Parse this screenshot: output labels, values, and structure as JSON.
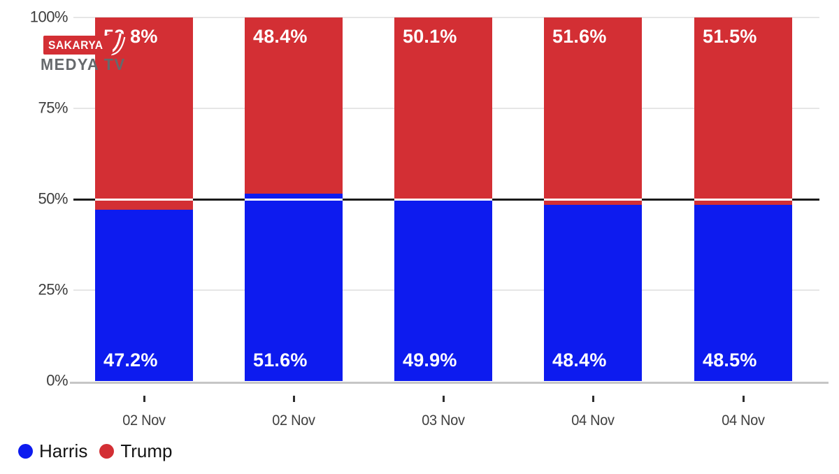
{
  "watermark": {
    "line1": "SAKARYA",
    "line2": "MEDYA TV"
  },
  "colors": {
    "harris_blue": "#0d1bef",
    "trump_red": "#d32f34",
    "grid": "#e6e6e6",
    "baseline": "#c6c6c6",
    "reference_line": "#1b1b1b",
    "axis_text": "#3d3d3d",
    "legend_text": "#141414",
    "logo_gray": "#66696c"
  },
  "chart_data": {
    "type": "bar",
    "stacked": true,
    "title": "",
    "xlabel": "",
    "ylabel": "",
    "ylim": [
      0,
      100
    ],
    "grid": true,
    "reference_line": 50,
    "legend_position": "bottom-left",
    "categories": [
      "02 Nov",
      "02 Nov",
      "03 Nov",
      "04 Nov",
      "04 Nov"
    ],
    "y_tick_values": [
      0,
      25,
      50,
      75,
      100
    ],
    "y_ticks": [
      "0%",
      "25%",
      "50%",
      "75%",
      "100%"
    ],
    "series": [
      {
        "name": "Harris",
        "color": "#0d1bef",
        "values": [
          47.2,
          51.6,
          49.9,
          48.4,
          48.5
        ],
        "labels": [
          "47.2%",
          "51.6%",
          "49.9%",
          "48.4%",
          "48.5%"
        ]
      },
      {
        "name": "Trump",
        "color": "#d32f34",
        "values": [
          52.8,
          48.4,
          50.1,
          51.6,
          51.5
        ],
        "labels": [
          "52.8%",
          "48.4%",
          "50.1%",
          "51.6%",
          "51.5%"
        ]
      }
    ]
  }
}
